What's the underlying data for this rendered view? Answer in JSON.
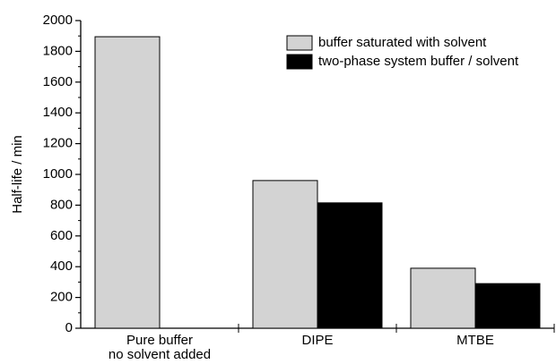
{
  "chart_data": {
    "type": "bar",
    "ylabel": "Half-life / min",
    "categories": [
      "Pure buffer\nno solvent added",
      "DIPE",
      "MTBE"
    ],
    "series": [
      {
        "name": "buffer saturated with solvent",
        "color": "#d3d3d3",
        "values": [
          1895,
          960,
          390
        ]
      },
      {
        "name": "two-phase system buffer / solvent",
        "color": "#000000",
        "values": [
          null,
          815,
          290
        ]
      }
    ],
    "ylim": [
      0,
      2000
    ],
    "yticks": [
      0,
      200,
      400,
      600,
      800,
      1000,
      1200,
      1400,
      1600,
      1800,
      2000
    ],
    "legend": "upper right"
  }
}
